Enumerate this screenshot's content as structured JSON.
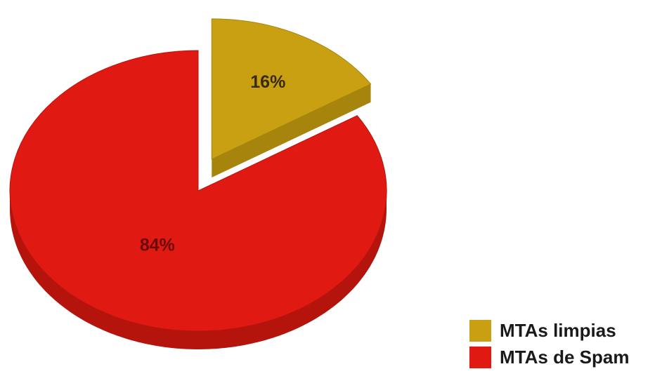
{
  "chart_data": {
    "type": "pie",
    "title": "",
    "slices": [
      {
        "label": "MTAs limpias",
        "value": 16,
        "value_label": "16%",
        "color": "#C9A012",
        "side_color": "#A7840C",
        "exploded": true
      },
      {
        "label": "MTAs de Spam",
        "value": 84,
        "value_label": "84%",
        "color": "#E01A12",
        "side_color": "#B5140D",
        "exploded": false
      }
    ],
    "legend": {
      "placement": "bottom-right",
      "items": [
        {
          "label": "MTAs limpias",
          "color": "#C9A012"
        },
        {
          "label": "MTAs de Spam",
          "color": "#E01A12"
        }
      ]
    }
  }
}
